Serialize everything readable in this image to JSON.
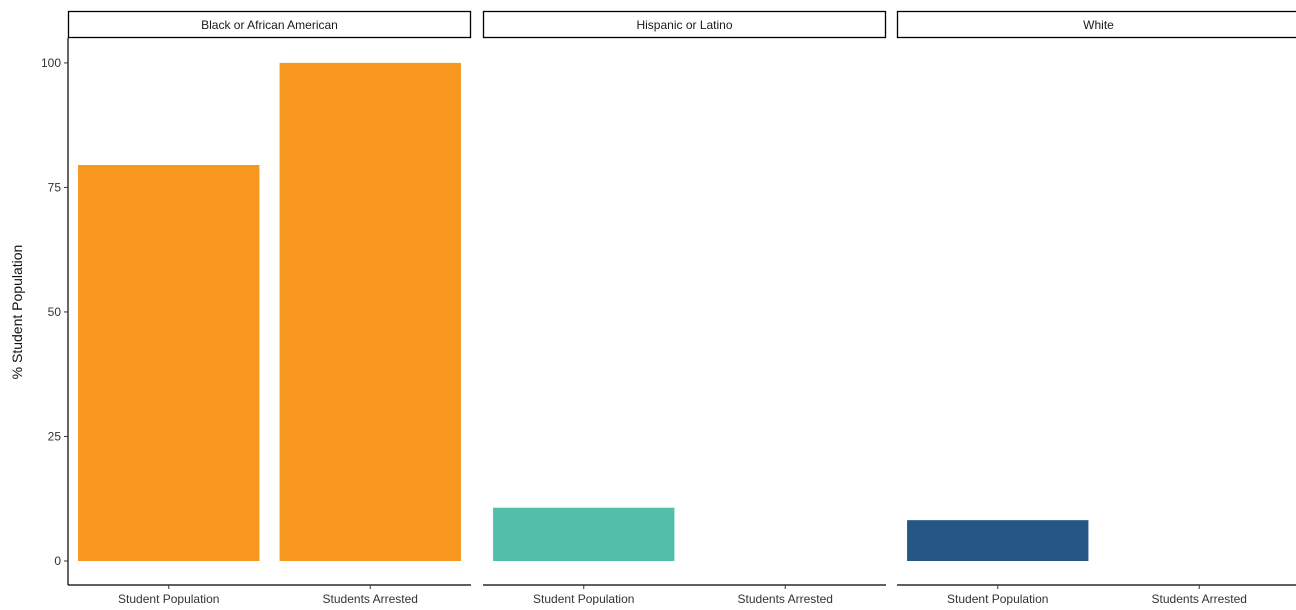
{
  "chart_data": {
    "type": "bar",
    "ylabel": "% Student Population",
    "xlabel": "",
    "ylim": [
      0,
      105
    ],
    "y_ticks": [
      0,
      25,
      50,
      75,
      100
    ],
    "grid": false,
    "categories": [
      "Student Population",
      "Students Arrested"
    ],
    "panels": [
      {
        "name": "Black or African American",
        "color": "#F7971E",
        "values": [
          79.5,
          100
        ]
      },
      {
        "name": "Hispanic or Latino",
        "color": "#52BFA8",
        "values": [
          10.7,
          0
        ]
      },
      {
        "name": "White",
        "color": "#245686",
        "values": [
          8.2,
          0
        ]
      }
    ]
  }
}
